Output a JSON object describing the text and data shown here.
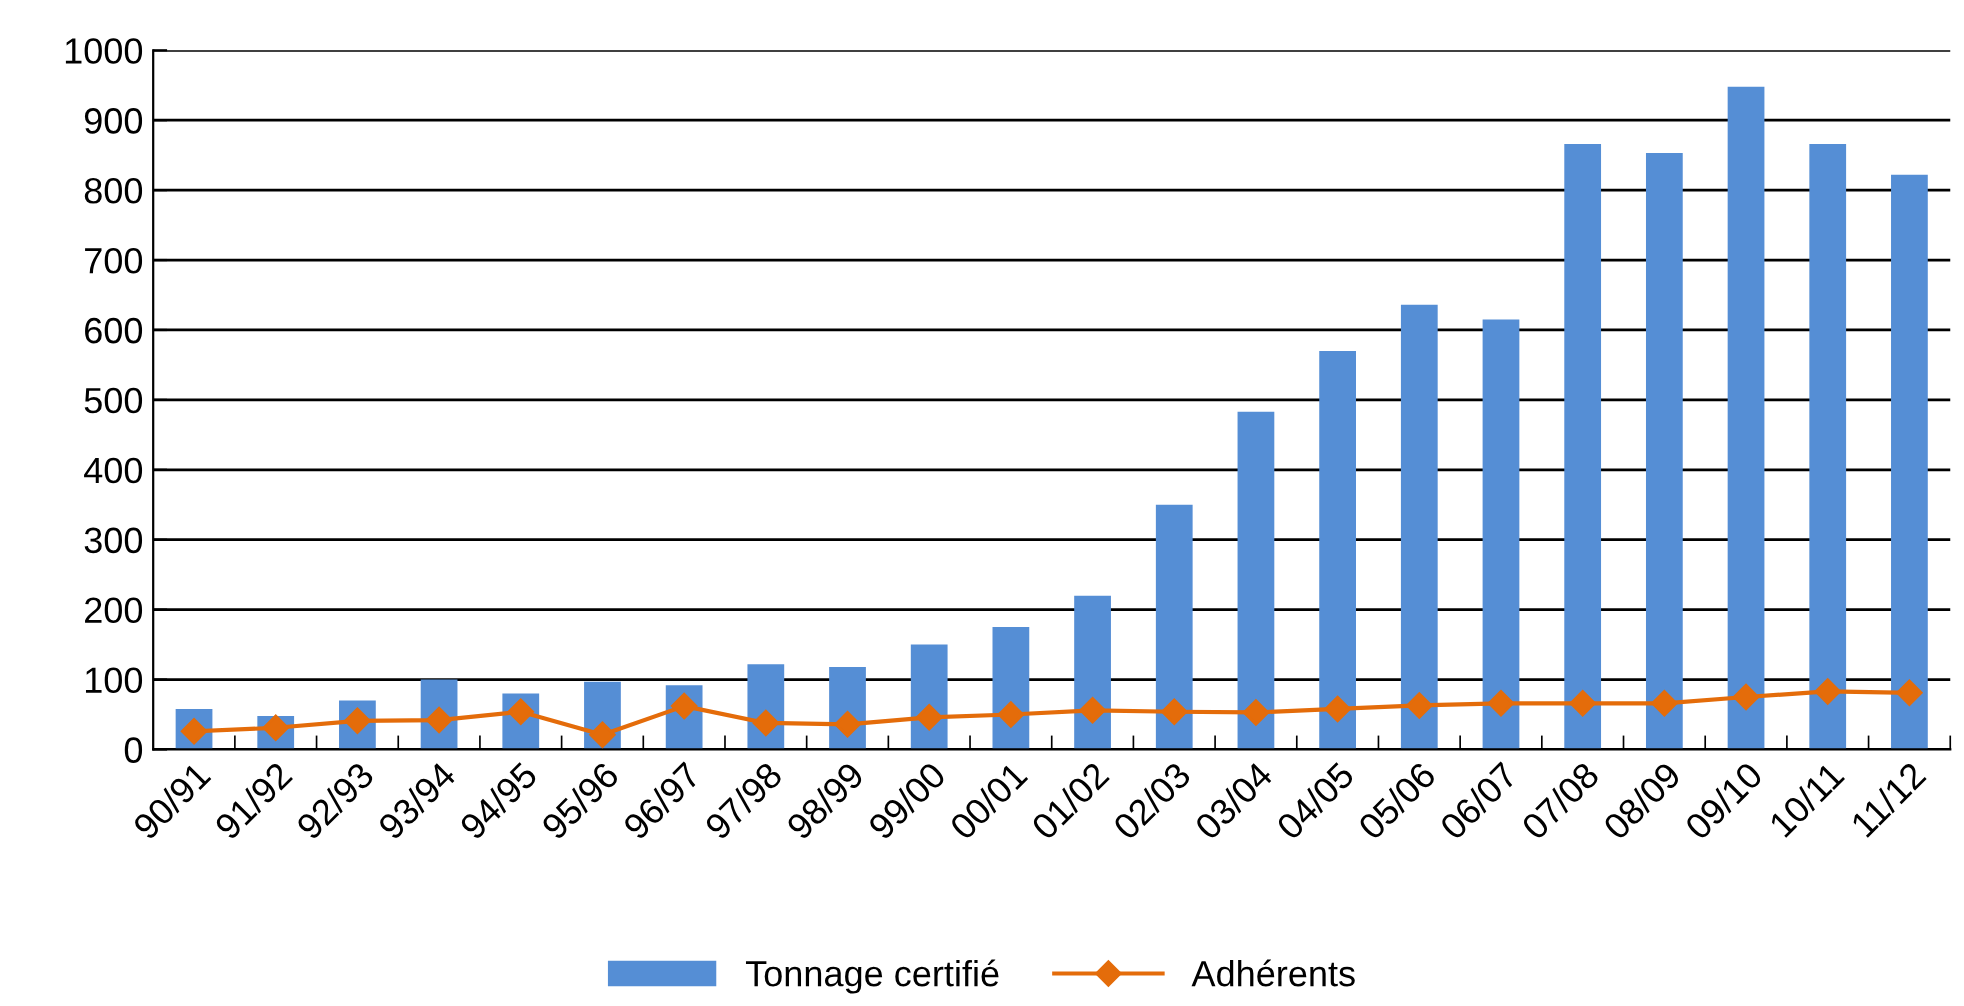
{
  "chart_data": {
    "type": "bar",
    "categories": [
      "90/91",
      "91/92",
      "92/93",
      "93/94",
      "94/95",
      "95/96",
      "96/97",
      "97/98",
      "98/99",
      "99/00",
      "00/01",
      "01/02",
      "02/03",
      "03/04",
      "04/05",
      "05/06",
      "06/07",
      "07/08",
      "08/09",
      "09/10",
      "10/11",
      "11/12"
    ],
    "series": [
      {
        "name": "Tonnage certifié",
        "color": "#558ed5",
        "values": [
          58,
          48,
          70,
          100,
          80,
          97,
          92,
          122,
          118,
          150,
          175,
          220,
          350,
          483,
          570,
          636,
          615,
          866,
          853,
          948,
          866,
          822
        ]
      },
      {
        "name": "Adhérents",
        "type": "line",
        "color": "#e46c0a",
        "marker": "diamond",
        "values": [
          26,
          31,
          41,
          42,
          54,
          21,
          62,
          38,
          36,
          46,
          50,
          56,
          54,
          53,
          58,
          63,
          66,
          66,
          66,
          75,
          83,
          81
        ]
      }
    ],
    "ylim": [
      0,
      1000
    ],
    "yticks": [
      0,
      100,
      200,
      300,
      400,
      500,
      600,
      700,
      800,
      900,
      1000
    ],
    "grid": "y",
    "legend": "bottom"
  }
}
